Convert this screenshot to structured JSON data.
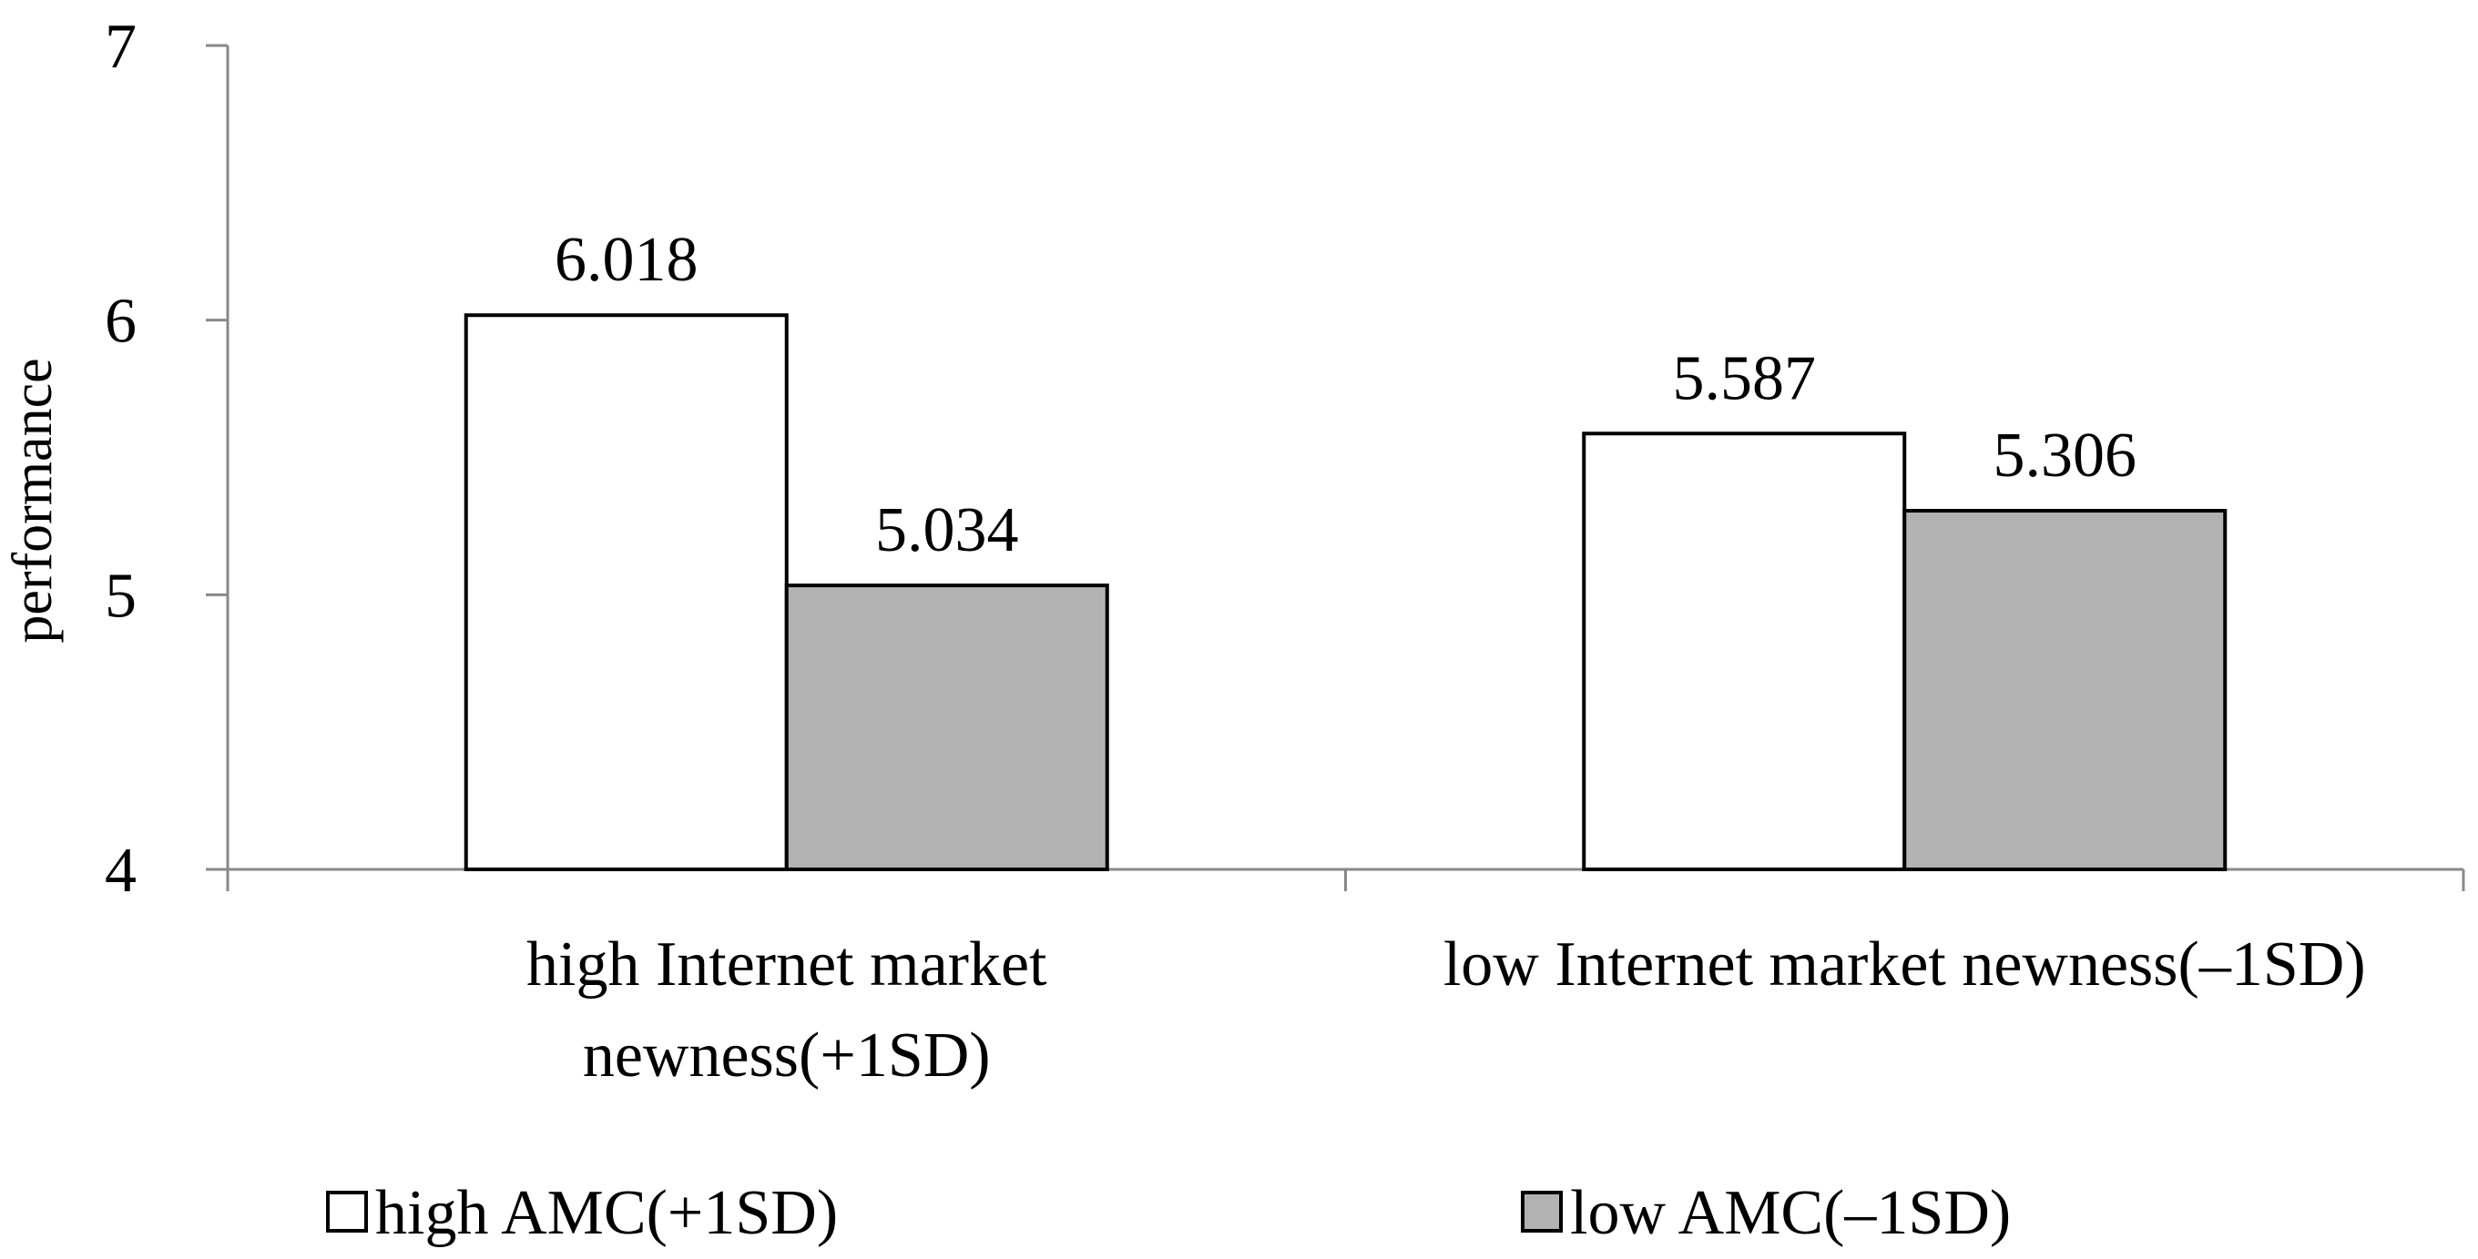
{
  "chart_data": {
    "type": "bar",
    "title": "",
    "xlabel": "",
    "ylabel": "performance",
    "ylim": [
      4,
      7
    ],
    "yticks": [
      "4",
      "5",
      "6",
      "7"
    ],
    "categories": [
      [
        "high Internet market",
        "newness(+1SD)"
      ],
      [
        "low Internet market newness(–1SD)"
      ]
    ],
    "series": [
      {
        "name": "high AMC(+1SD)",
        "color": "#ffffff",
        "values": [
          6.018,
          5.587
        ],
        "labels": [
          "6.018",
          "5.587"
        ]
      },
      {
        "name": "low AMC(–1SD)",
        "color": "#b2b2b2",
        "values": [
          5.034,
          5.306
        ],
        "labels": [
          "5.034",
          "5.306"
        ]
      }
    ],
    "grid": false,
    "legend": "bottom"
  }
}
